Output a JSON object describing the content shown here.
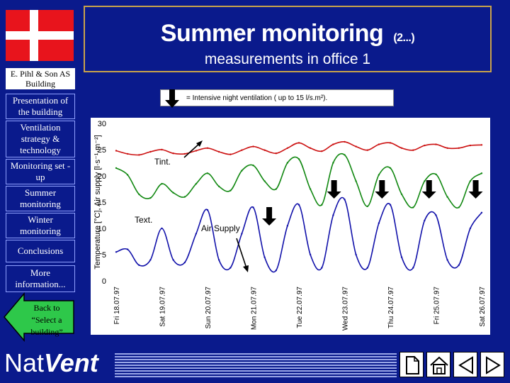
{
  "title": "Summer monitoring",
  "title_suffix": "(2...)",
  "subtitle": "measurements in office 1",
  "company": "E. Pihl & Son AS Building",
  "nav": [
    {
      "label": "Presentation of the building"
    },
    {
      "label": "Ventilation strategy & technology"
    },
    {
      "label": "Monitoring set -up"
    },
    {
      "label": "Summer monitoring"
    },
    {
      "label": "Winter monitoring"
    },
    {
      "label": "Conclusions"
    },
    {
      "label": "More information..."
    }
  ],
  "back_label": "Back to “Select a building”",
  "logo": {
    "nat": "Nat",
    "vent": "Vent"
  },
  "colors": {
    "background": "#0a1a8c",
    "tint": "#cc1111",
    "green": "#118811",
    "blue": "#1111aa",
    "flag_red": "#e8141c",
    "title_border": "#c9a24a"
  },
  "nav_buttons": [
    "new-page-icon",
    "home-icon",
    "previous-icon",
    "next-icon"
  ],
  "legend_text": "= Intensive night ventilation ( up to 15 l/s.m²).",
  "chart_data": {
    "type": "line",
    "ylabel": "Temperature [°C], Air supply [l·s⁻¹·m⁻²]",
    "ylim": [
      0,
      30
    ],
    "yticks": [
      0,
      5,
      10,
      15,
      20,
      25,
      30
    ],
    "grid": false,
    "x_labels": [
      "Fri 18.07.97",
      "Sat 19.07.97",
      "Sun 20.07.97",
      "Mon 21.07.97",
      "Tue 22.07.97",
      "Wed 23.07.97",
      "Thu 24.07.97",
      "Fri 25.07.97",
      "Sat 26.07.97"
    ],
    "x": [
      0,
      0.25,
      0.5,
      0.75,
      1,
      1.25,
      1.5,
      1.75,
      2,
      2.25,
      2.5,
      2.75,
      3,
      3.25,
      3.5,
      3.75,
      4,
      4.25,
      4.5,
      4.75,
      5,
      5.25,
      5.5,
      5.75,
      6,
      6.25,
      6.5,
      6.75,
      7,
      7.25,
      7.5,
      7.75,
      8
    ],
    "series": [
      {
        "values": [
          24.8,
          24.2,
          24.0,
          24.6,
          25.0,
          24.3,
          24.2,
          24.8,
          25.3,
          24.6,
          24.1,
          24.9,
          25.6,
          24.9,
          24.3,
          25.3,
          26.3,
          25.3,
          24.7,
          26.0,
          26.5,
          25.6,
          24.9,
          26.0,
          26.3,
          25.3,
          24.9,
          25.8,
          26.0,
          25.3,
          25.3,
          25.8,
          25.9
        ]
      },
      {
        "values": [
          21.5,
          20.2,
          16.5,
          15.8,
          18.5,
          16.8,
          16.0,
          18.5,
          20.5,
          18.0,
          17.2,
          21.0,
          22.0,
          19.0,
          17.5,
          22.5,
          23.2,
          17.5,
          14.5,
          22.5,
          24.0,
          19.0,
          14.2,
          20.2,
          21.5,
          16.5,
          14.0,
          19.0,
          20.3,
          16.0,
          14.0,
          19.0,
          20.5
        ]
      },
      {
        "values": [
          5.5,
          6.0,
          3.0,
          4.0,
          10.0,
          4.0,
          3.5,
          9.0,
          13.5,
          4.0,
          2.5,
          9.0,
          14.0,
          4.5,
          2.0,
          10.5,
          14.5,
          5.0,
          2.5,
          12.5,
          15.5,
          5.0,
          2.5,
          11.0,
          14.5,
          4.5,
          2.5,
          11.5,
          12.5,
          4.0,
          3.0,
          10.0,
          13.0
        ]
      }
    ],
    "annotations": [
      {
        "text": "Tint."
      },
      {
        "text": "Text."
      },
      {
        "text": "Air Supply"
      }
    ],
    "ventilation_markers_x": [
      4.8,
      5.85,
      6.88,
      7.9
    ]
  }
}
